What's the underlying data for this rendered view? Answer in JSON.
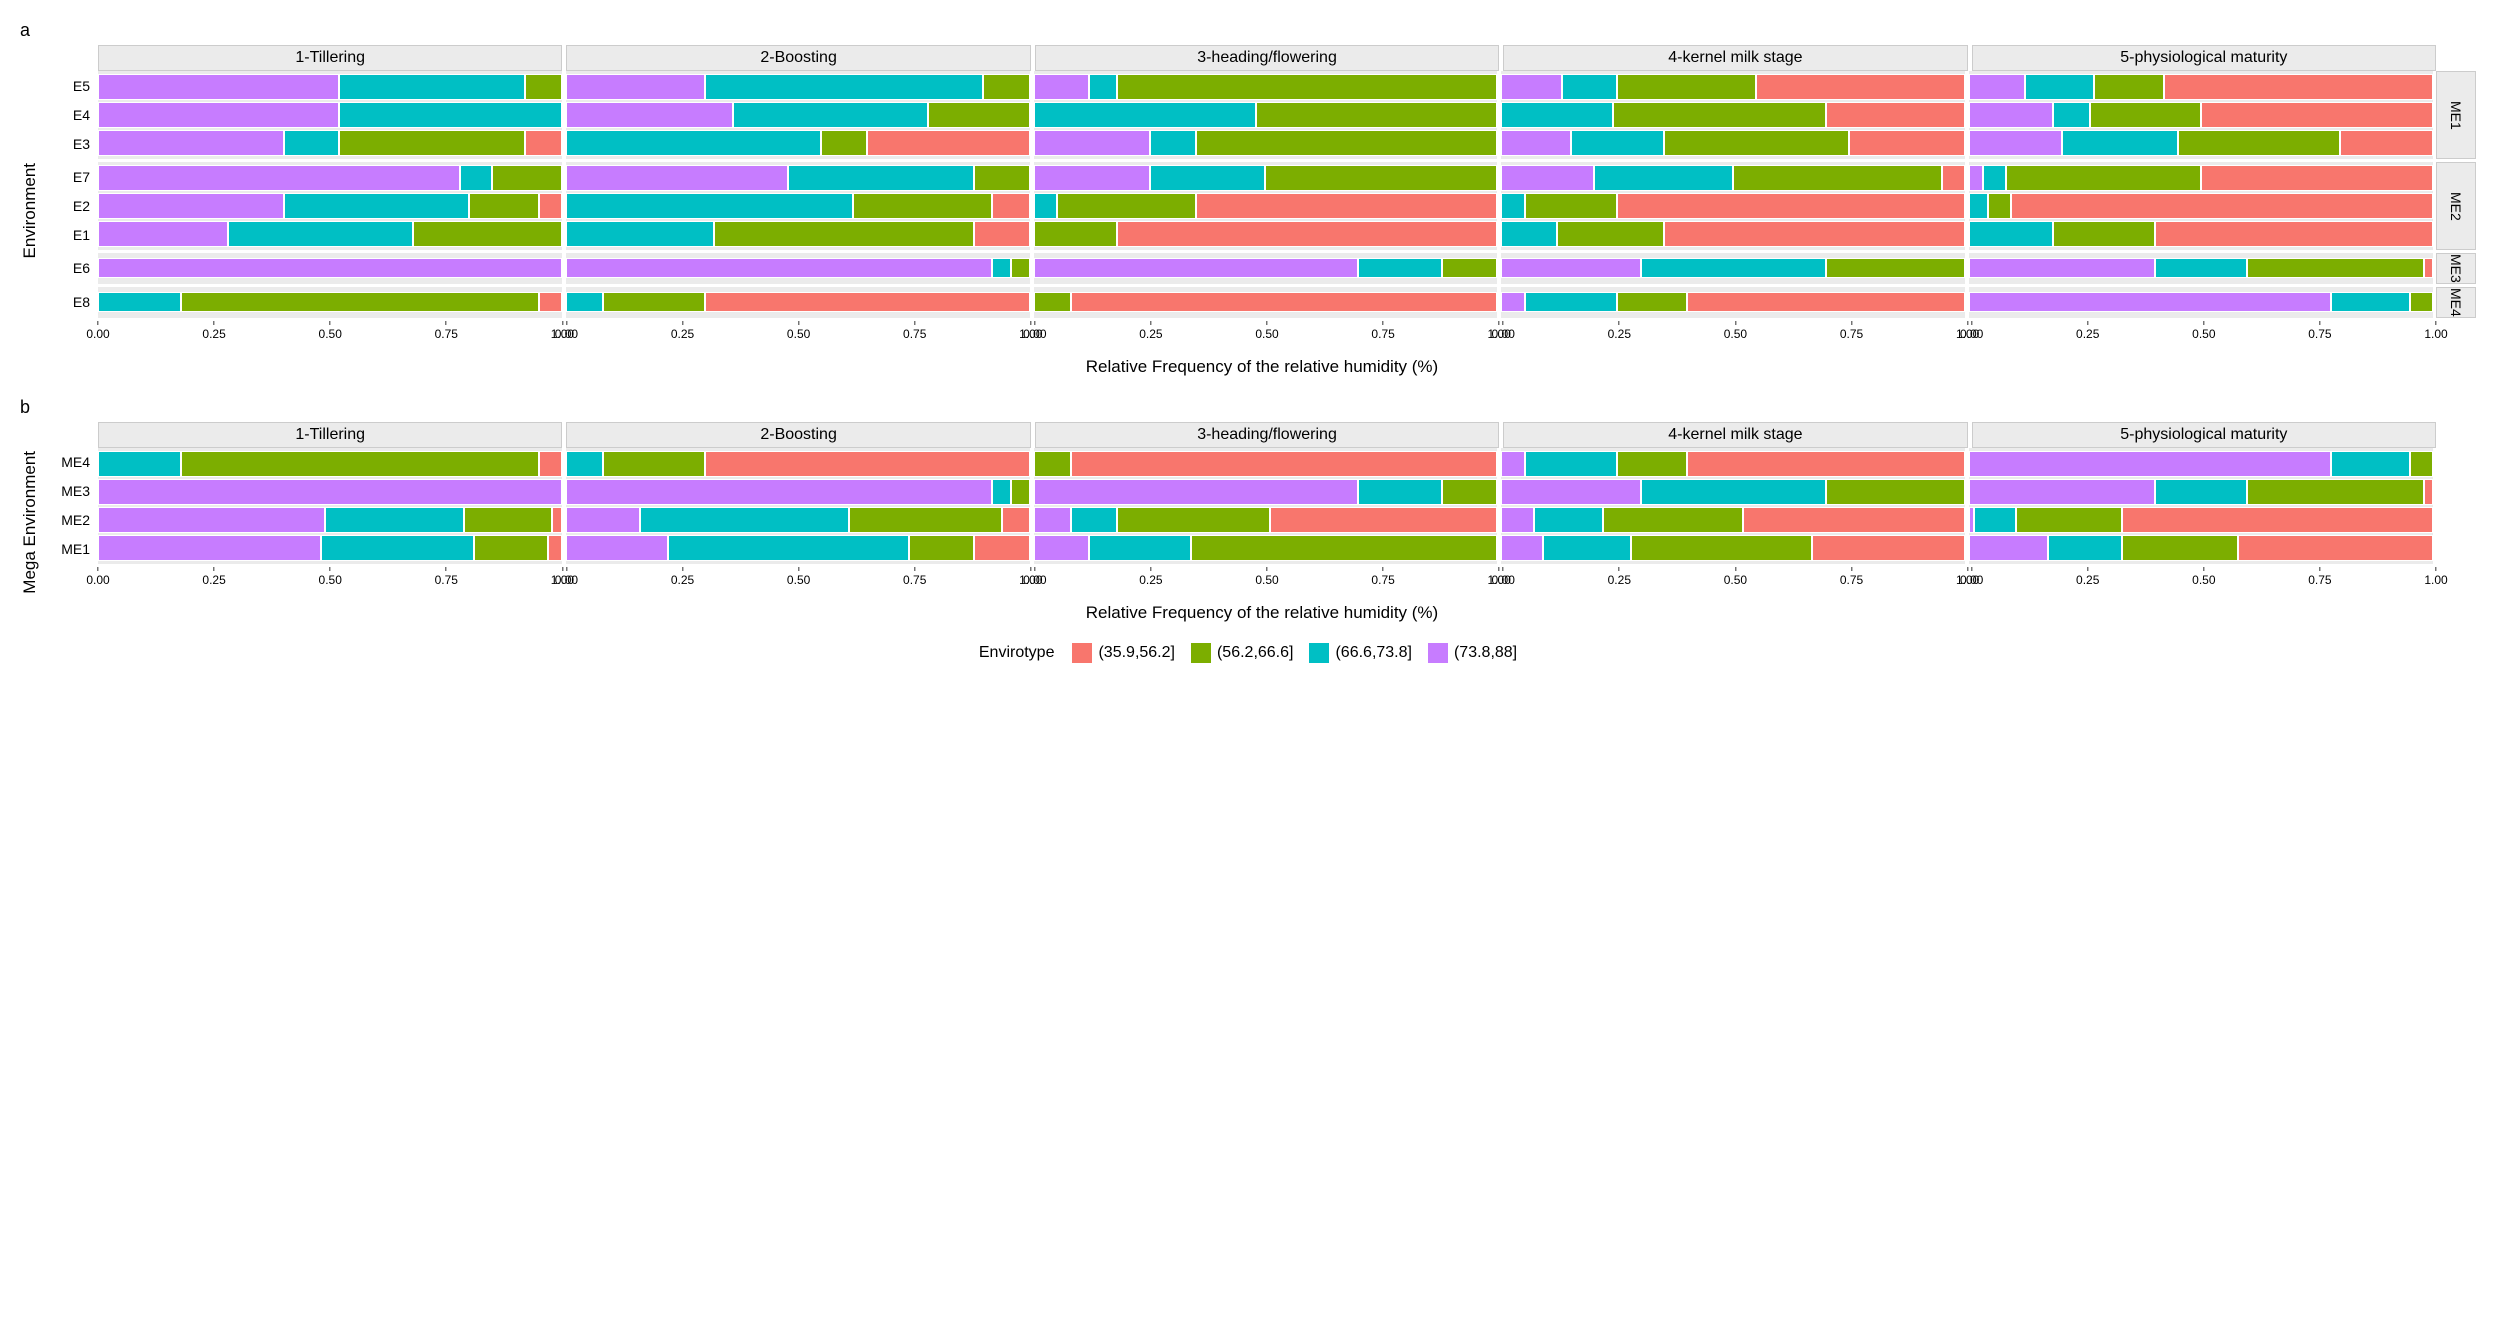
{
  "colors": {
    "c1": "#f8766d",
    "c2": "#7cae00",
    "c3": "#00bfc4",
    "c4": "#c77cff",
    "strip_bg": "#ebebeb",
    "panel_bg": "#ebebeb",
    "page_bg": "#ffffff"
  },
  "typography": {
    "strip_fontsize": 16,
    "axis_label_fontsize": 14,
    "axis_title_fontsize": 17,
    "tick_fontsize": 12,
    "legend_fontsize": 16,
    "panel_letter_fontsize": 18
  },
  "legend": {
    "title": "Envirotype",
    "items": [
      {
        "label": "(35.9,56.2]",
        "color": "c1"
      },
      {
        "label": "(56.2,66.6]",
        "color": "c2"
      },
      {
        "label": "(66.6,73.8]",
        "color": "c3"
      },
      {
        "label": "(73.8,88]",
        "color": "c4"
      }
    ]
  },
  "x_axis": {
    "title": "Relative Frequency of the relative humidity (%)",
    "ticks": [
      {
        "v": 0.0,
        "label": "0.00"
      },
      {
        "v": 0.25,
        "label": "0.25"
      },
      {
        "v": 0.5,
        "label": "0.50"
      },
      {
        "v": 0.75,
        "label": "0.75"
      },
      {
        "v": 1.0,
        "label": "1.00"
      }
    ],
    "lim": [
      0,
      1
    ]
  },
  "stages": [
    "1-Tillering",
    "2-Boosting",
    "3-heading/flowering",
    "4-kernel milk stage",
    "5-physiological maturity"
  ],
  "panel_a": {
    "letter": "a",
    "type": "stacked-bar-faceted",
    "y_title": "Environment",
    "row_groups": [
      {
        "label": "ME1",
        "envs": [
          "E5",
          "E4",
          "E3"
        ]
      },
      {
        "label": "ME2",
        "envs": [
          "E7",
          "E2",
          "E1"
        ]
      },
      {
        "label": "ME3",
        "envs": [
          "E6"
        ]
      },
      {
        "label": "ME4",
        "envs": [
          "E8"
        ]
      }
    ],
    "data": {
      "E5": {
        "1-Tillering": {
          "c4": 0.52,
          "c3": 0.4,
          "c2": 0.08,
          "c1": 0.0
        },
        "2-Boosting": {
          "c4": 0.3,
          "c3": 0.6,
          "c2": 0.1,
          "c1": 0.0
        },
        "3-heading/flowering": {
          "c4": 0.12,
          "c3": 0.06,
          "c2": 0.82,
          "c1": 0.0
        },
        "4-kernel milk stage": {
          "c4": 0.13,
          "c3": 0.12,
          "c2": 0.3,
          "c1": 0.45
        },
        "5-physiological maturity": {
          "c4": 0.12,
          "c3": 0.15,
          "c2": 0.15,
          "c1": 0.58
        }
      },
      "E4": {
        "1-Tillering": {
          "c4": 0.52,
          "c3": 0.48,
          "c2": 0.0,
          "c1": 0.0
        },
        "2-Boosting": {
          "c4": 0.36,
          "c3": 0.42,
          "c2": 0.22,
          "c1": 0.0
        },
        "3-heading/flowering": {
          "c4": 0.0,
          "c3": 0.48,
          "c2": 0.52,
          "c1": 0.0
        },
        "4-kernel milk stage": {
          "c4": 0.0,
          "c3": 0.24,
          "c2": 0.46,
          "c1": 0.3
        },
        "5-physiological maturity": {
          "c4": 0.18,
          "c3": 0.08,
          "c2": 0.24,
          "c1": 0.5
        }
      },
      "E3": {
        "1-Tillering": {
          "c4": 0.4,
          "c3": 0.12,
          "c2": 0.4,
          "c1": 0.08
        },
        "2-Boosting": {
          "c4": 0.0,
          "c3": 0.55,
          "c2": 0.1,
          "c1": 0.35
        },
        "3-heading/flowering": {
          "c4": 0.25,
          "c3": 0.1,
          "c2": 0.65,
          "c1": 0.0
        },
        "4-kernel milk stage": {
          "c4": 0.15,
          "c3": 0.2,
          "c2": 0.4,
          "c1": 0.25
        },
        "5-physiological maturity": {
          "c4": 0.2,
          "c3": 0.25,
          "c2": 0.35,
          "c1": 0.2
        }
      },
      "E7": {
        "1-Tillering": {
          "c4": 0.78,
          "c3": 0.07,
          "c2": 0.15,
          "c1": 0.0
        },
        "2-Boosting": {
          "c4": 0.48,
          "c3": 0.4,
          "c2": 0.12,
          "c1": 0.0
        },
        "3-heading/flowering": {
          "c4": 0.25,
          "c3": 0.25,
          "c2": 0.5,
          "c1": 0.0
        },
        "4-kernel milk stage": {
          "c4": 0.2,
          "c3": 0.3,
          "c2": 0.45,
          "c1": 0.05
        },
        "5-physiological maturity": {
          "c4": 0.03,
          "c3": 0.05,
          "c2": 0.42,
          "c1": 0.5
        }
      },
      "E2": {
        "1-Tillering": {
          "c4": 0.4,
          "c3": 0.4,
          "c2": 0.15,
          "c1": 0.05
        },
        "2-Boosting": {
          "c4": 0.0,
          "c3": 0.62,
          "c2": 0.3,
          "c1": 0.08
        },
        "3-heading/flowering": {
          "c4": 0.0,
          "c3": 0.05,
          "c2": 0.3,
          "c1": 0.65
        },
        "4-kernel milk stage": {
          "c4": 0.0,
          "c3": 0.05,
          "c2": 0.2,
          "c1": 0.75
        },
        "5-physiological maturity": {
          "c4": 0.0,
          "c3": 0.04,
          "c2": 0.05,
          "c1": 0.91
        }
      },
      "E1": {
        "1-Tillering": {
          "c4": 0.28,
          "c3": 0.4,
          "c2": 0.32,
          "c1": 0.0
        },
        "2-Boosting": {
          "c4": 0.0,
          "c3": 0.32,
          "c2": 0.56,
          "c1": 0.12
        },
        "3-heading/flowering": {
          "c4": 0.0,
          "c3": 0.0,
          "c2": 0.18,
          "c1": 0.82
        },
        "4-kernel milk stage": {
          "c4": 0.0,
          "c3": 0.12,
          "c2": 0.23,
          "c1": 0.65
        },
        "5-physiological maturity": {
          "c4": 0.0,
          "c3": 0.18,
          "c2": 0.22,
          "c1": 0.6
        }
      },
      "E6": {
        "1-Tillering": {
          "c4": 1.0,
          "c3": 0.0,
          "c2": 0.0,
          "c1": 0.0
        },
        "2-Boosting": {
          "c4": 0.92,
          "c3": 0.04,
          "c2": 0.04,
          "c1": 0.0
        },
        "3-heading/flowering": {
          "c4": 0.7,
          "c3": 0.18,
          "c2": 0.12,
          "c1": 0.0
        },
        "4-kernel milk stage": {
          "c4": 0.3,
          "c3": 0.4,
          "c2": 0.3,
          "c1": 0.0
        },
        "5-physiological maturity": {
          "c4": 0.4,
          "c3": 0.2,
          "c2": 0.38,
          "c1": 0.02
        }
      },
      "E8": {
        "1-Tillering": {
          "c4": 0.0,
          "c3": 0.18,
          "c2": 0.77,
          "c1": 0.05
        },
        "2-Boosting": {
          "c4": 0.0,
          "c3": 0.08,
          "c2": 0.22,
          "c1": 0.7
        },
        "3-heading/flowering": {
          "c4": 0.0,
          "c3": 0.0,
          "c2": 0.08,
          "c1": 0.92
        },
        "4-kernel milk stage": {
          "c4": 0.05,
          "c3": 0.2,
          "c2": 0.15,
          "c1": 0.6
        },
        "5-physiological maturity": {
          "c4": 0.78,
          "c3": 0.17,
          "c2": 0.05,
          "c1": 0.0
        }
      }
    }
  },
  "panel_b": {
    "letter": "b",
    "type": "stacked-bar-faceted",
    "y_title": "Mega Environment",
    "rows": [
      "ME4",
      "ME3",
      "ME2",
      "ME1"
    ],
    "data": {
      "ME4": {
        "1-Tillering": {
          "c4": 0.0,
          "c3": 0.18,
          "c2": 0.77,
          "c1": 0.05
        },
        "2-Boosting": {
          "c4": 0.0,
          "c3": 0.08,
          "c2": 0.22,
          "c1": 0.7
        },
        "3-heading/flowering": {
          "c4": 0.0,
          "c3": 0.0,
          "c2": 0.08,
          "c1": 0.92
        },
        "4-kernel milk stage": {
          "c4": 0.05,
          "c3": 0.2,
          "c2": 0.15,
          "c1": 0.6
        },
        "5-physiological maturity": {
          "c4": 0.78,
          "c3": 0.17,
          "c2": 0.05,
          "c1": 0.0
        }
      },
      "ME3": {
        "1-Tillering": {
          "c4": 1.0,
          "c3": 0.0,
          "c2": 0.0,
          "c1": 0.0
        },
        "2-Boosting": {
          "c4": 0.92,
          "c3": 0.04,
          "c2": 0.04,
          "c1": 0.0
        },
        "3-heading/flowering": {
          "c4": 0.7,
          "c3": 0.18,
          "c2": 0.12,
          "c1": 0.0
        },
        "4-kernel milk stage": {
          "c4": 0.3,
          "c3": 0.4,
          "c2": 0.3,
          "c1": 0.0
        },
        "5-physiological maturity": {
          "c4": 0.4,
          "c3": 0.2,
          "c2": 0.38,
          "c1": 0.02
        }
      },
      "ME2": {
        "1-Tillering": {
          "c4": 0.49,
          "c3": 0.3,
          "c2": 0.19,
          "c1": 0.02
        },
        "2-Boosting": {
          "c4": 0.16,
          "c3": 0.45,
          "c2": 0.33,
          "c1": 0.06
        },
        "3-heading/flowering": {
          "c4": 0.08,
          "c3": 0.1,
          "c2": 0.33,
          "c1": 0.49
        },
        "4-kernel milk stage": {
          "c4": 0.07,
          "c3": 0.15,
          "c2": 0.3,
          "c1": 0.48
        },
        "5-physiological maturity": {
          "c4": 0.01,
          "c3": 0.09,
          "c2": 0.23,
          "c1": 0.67
        }
      },
      "ME1": {
        "1-Tillering": {
          "c4": 0.48,
          "c3": 0.33,
          "c2": 0.16,
          "c1": 0.03
        },
        "2-Boosting": {
          "c4": 0.22,
          "c3": 0.52,
          "c2": 0.14,
          "c1": 0.12
        },
        "3-heading/flowering": {
          "c4": 0.12,
          "c3": 0.22,
          "c2": 0.66,
          "c1": 0.0
        },
        "4-kernel milk stage": {
          "c4": 0.09,
          "c3": 0.19,
          "c2": 0.39,
          "c1": 0.33
        },
        "5-physiological maturity": {
          "c4": 0.17,
          "c3": 0.16,
          "c2": 0.25,
          "c1": 0.42
        }
      }
    }
  }
}
